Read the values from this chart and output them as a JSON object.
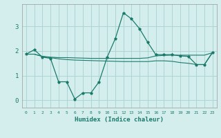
{
  "xlabel": "Humidex (Indice chaleur)",
  "bg_color": "#d4eeee",
  "grid_color": "#aed4d4",
  "line_color": "#1a7a6a",
  "xlim": [
    -0.5,
    23.5
  ],
  "ylim": [
    -0.3,
    3.9
  ],
  "xtick_labels": [
    "0",
    "1",
    "2",
    "3",
    "4",
    "5",
    "6",
    "7",
    "8",
    "9",
    "10",
    "11",
    "12",
    "13",
    "14",
    "15",
    "16",
    "17",
    "18",
    "19",
    "20",
    "21",
    "22",
    "23"
  ],
  "ytick_values": [
    0,
    1,
    2,
    3
  ],
  "series1_x": [
    0,
    1,
    2,
    3,
    4,
    5,
    6,
    7,
    8,
    9,
    10,
    11,
    12,
    13,
    14,
    15,
    16,
    17,
    18,
    19,
    20,
    21,
    22,
    23
  ],
  "series1_y": [
    1.87,
    2.05,
    1.75,
    1.7,
    0.75,
    0.75,
    0.05,
    0.3,
    0.3,
    0.75,
    1.75,
    2.5,
    3.55,
    3.3,
    2.9,
    2.35,
    1.85,
    1.85,
    1.85,
    1.8,
    1.78,
    1.45,
    1.45,
    1.95
  ],
  "series2_x": [
    0,
    1,
    2,
    3,
    4,
    5,
    6,
    7,
    8,
    9,
    10,
    11,
    12,
    13,
    14,
    15,
    16,
    17,
    18,
    19,
    20,
    21,
    22,
    23
  ],
  "series2_y": [
    1.87,
    1.87,
    1.78,
    1.75,
    1.73,
    1.73,
    1.72,
    1.71,
    1.7,
    1.7,
    1.7,
    1.7,
    1.7,
    1.7,
    1.7,
    1.72,
    1.8,
    1.82,
    1.83,
    1.83,
    1.83,
    1.83,
    1.83,
    1.93
  ],
  "series3_x": [
    0,
    1,
    2,
    3,
    4,
    5,
    6,
    7,
    8,
    9,
    10,
    11,
    12,
    13,
    14,
    15,
    16,
    17,
    18,
    19,
    20,
    21,
    22,
    23
  ],
  "series3_y": [
    1.87,
    1.87,
    1.78,
    1.73,
    1.68,
    1.65,
    1.63,
    1.62,
    1.61,
    1.6,
    1.59,
    1.58,
    1.57,
    1.57,
    1.57,
    1.57,
    1.6,
    1.6,
    1.58,
    1.53,
    1.5,
    1.45,
    1.45,
    1.93
  ]
}
